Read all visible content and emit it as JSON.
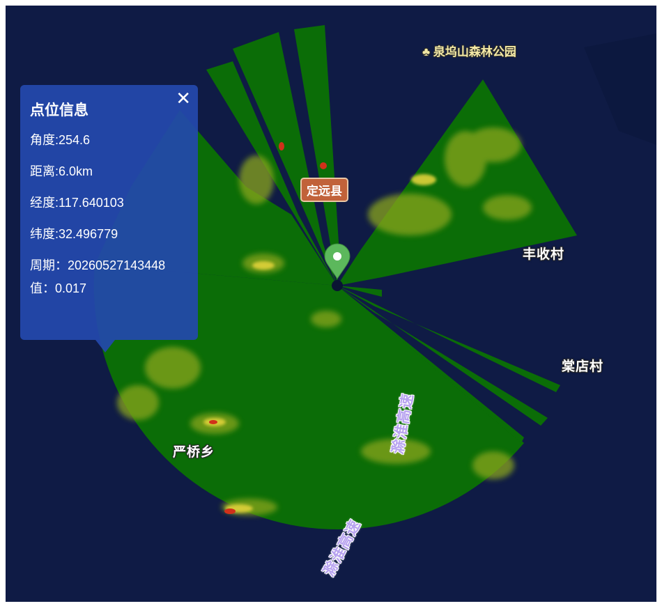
{
  "popup": {
    "title": "点位信息",
    "close": "✕",
    "rows": [
      {
        "label": "角度:",
        "value": "254.6"
      },
      {
        "label": "距离:",
        "value": "6.0km"
      },
      {
        "label": "经度:",
        "value": "117.640103"
      },
      {
        "label": "纬度:",
        "value": "32.496779"
      },
      {
        "label": "周期：",
        "value": "20260527143448"
      },
      {
        "label": "值：",
        "value": "0.017"
      }
    ]
  },
  "map": {
    "poi": {
      "label": "泉坞山森林公园",
      "icon": "tree-icon"
    },
    "county": "定远县",
    "places": {
      "fengshou": "丰收村",
      "tangdian": "棠店村",
      "yanqiao": "严桥乡"
    },
    "roads": {
      "road1": "滁淮高速",
      "road2": "滁淮高速"
    },
    "marker_icon": "location-pin-icon"
  },
  "colors": {
    "background": "#0f1b45",
    "radar_green": "#0b6d07",
    "popup_bg": "#2448ac",
    "county_badge": "#c1623a",
    "marker": "#5cb85c"
  }
}
